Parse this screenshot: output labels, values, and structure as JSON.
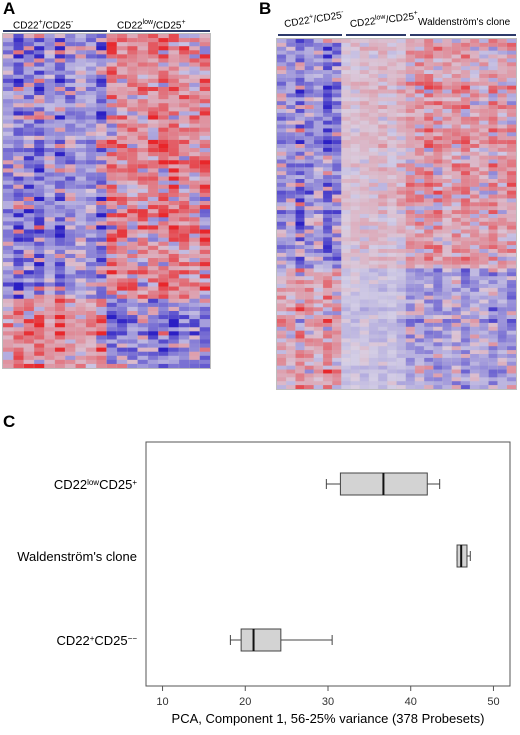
{
  "panels": {
    "a": {
      "letter": "A",
      "groups": [
        {
          "label": "CD22",
          "sup": "+",
          "label2": "/CD25",
          "sup2": "-"
        },
        {
          "label": "CD22",
          "sup": "low",
          "label2": "/CD25",
          "sup2": "+"
        }
      ]
    },
    "b": {
      "letter": "B",
      "groups": [
        {
          "label": "CD22",
          "sup": "+",
          "label2": "/CD25",
          "sup2": "-"
        },
        {
          "label": "CD22",
          "sup": "low",
          "label2": "/CD25",
          "sup2": "+"
        },
        {
          "label": "Waldenström's clone",
          "sup": "",
          "label2": "",
          "sup2": ""
        }
      ]
    },
    "c": {
      "letter": "C"
    }
  },
  "heatmap_colors": {
    "high": "#e8262a",
    "mid": "#d9d3e6",
    "low": "#2b1fc4"
  },
  "chart_data": {
    "type": "boxplot",
    "orientation": "horizontal",
    "xlabel": "PCA, Component 1, 56-25% variance (378 Probesets)",
    "xlim": [
      8,
      52
    ],
    "xticks": [
      10,
      20,
      30,
      40,
      50
    ],
    "box_color": "#d3d3d3",
    "categories": [
      {
        "name": "CD22",
        "sup": "low",
        "name2": "CD25",
        "sup2": "+"
      },
      {
        "name": "Waldenström's clone",
        "sup": "",
        "name2": "",
        "sup2": ""
      },
      {
        "name": "CD22",
        "sup": "+",
        "name2": "CD25",
        "sup2": "−−"
      }
    ],
    "boxes": [
      {
        "whisker_low": 29.8,
        "q1": 31.5,
        "median": 36.7,
        "q3": 42,
        "whisker_high": 43.5
      },
      {
        "whisker_low": 45.6,
        "q1": 45.6,
        "median": 46.1,
        "q3": 46.8,
        "whisker_high": 47.2
      },
      {
        "whisker_low": 18.2,
        "q1": 19.5,
        "median": 21,
        "q3": 24.3,
        "whisker_high": 30.5
      }
    ]
  }
}
